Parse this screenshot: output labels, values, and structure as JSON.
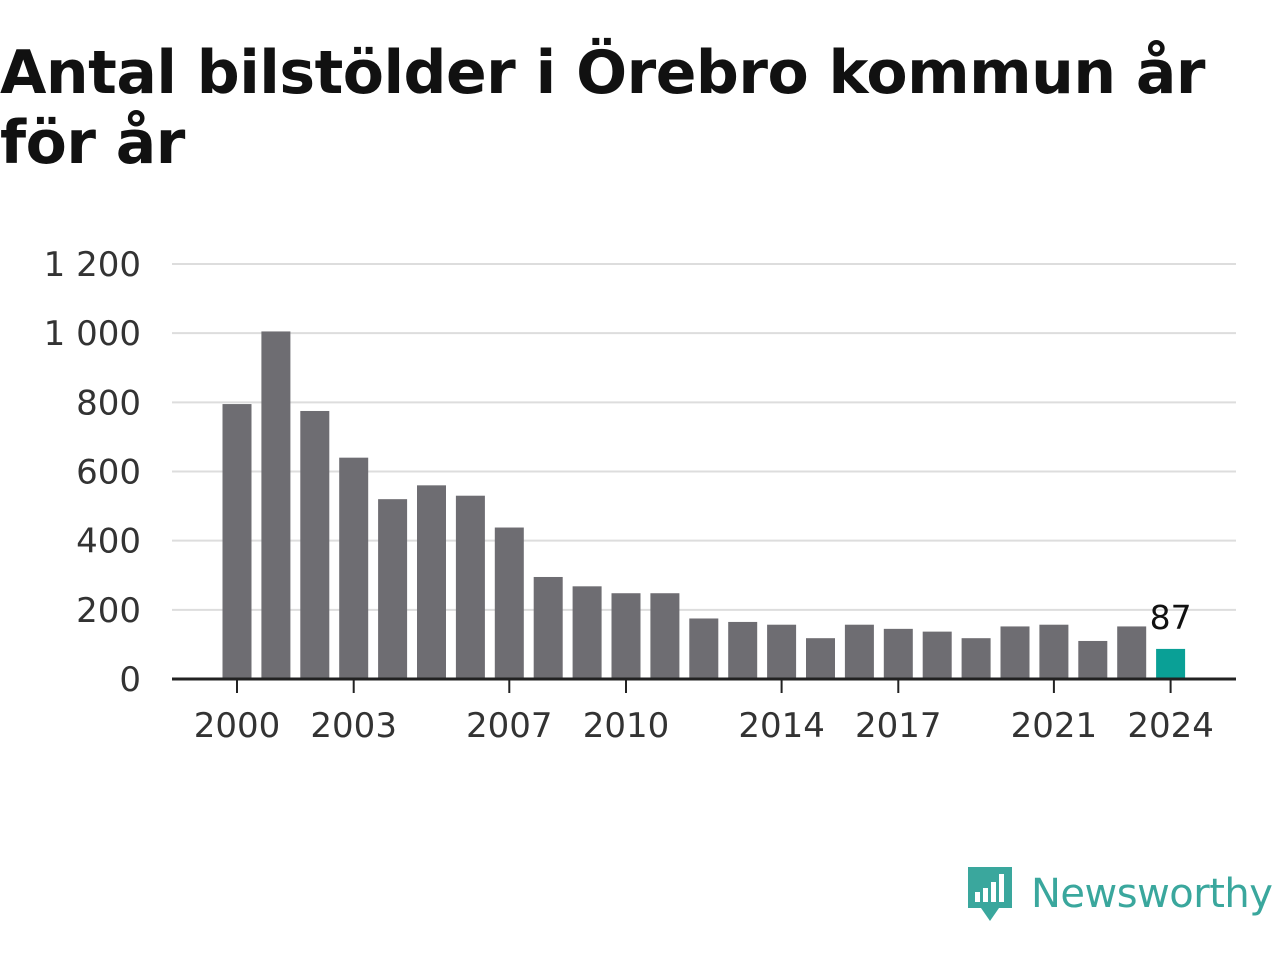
{
  "title": "Antal bilstölder i Örebro kommun år för år",
  "brand": {
    "name": "Newsworthy",
    "icon": "newsworthy-logo-icon",
    "color": "#3aa79d"
  },
  "chart_data": {
    "type": "bar",
    "title": "Antal bilstölder i Örebro kommun år för år",
    "xlabel": "",
    "ylabel": "",
    "categories": [
      "2000",
      "2001",
      "2002",
      "2003",
      "2004",
      "2005",
      "2006",
      "2007",
      "2008",
      "2009",
      "2010",
      "2011",
      "2012",
      "2013",
      "2014",
      "2015",
      "2016",
      "2017",
      "2018",
      "2019",
      "2020",
      "2021",
      "2022",
      "2023",
      "2024"
    ],
    "values": [
      795,
      1005,
      775,
      640,
      520,
      560,
      530,
      438,
      295,
      268,
      248,
      248,
      175,
      165,
      157,
      118,
      157,
      145,
      137,
      118,
      152,
      157,
      110,
      152,
      87
    ],
    "ylim": [
      0,
      1200
    ],
    "yticks": [
      0,
      200,
      400,
      600,
      800,
      1000,
      1200
    ],
    "ytick_labels": [
      "0",
      "200",
      "400",
      "600",
      "800",
      "1 000",
      "1 200"
    ],
    "xtick_labels": [
      "2000",
      "2003",
      "2007",
      "2010",
      "2014",
      "2017",
      "2021",
      "2024"
    ],
    "highlight": {
      "category": "2024",
      "label": "87"
    },
    "colors": {
      "bar": "#6e6d72",
      "highlight": "#0aa096",
      "grid": "#dddddd",
      "axis": "#222222"
    },
    "grid": true,
    "legend": "none"
  }
}
